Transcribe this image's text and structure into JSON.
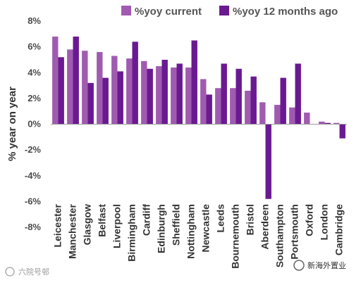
{
  "chart_data": {
    "type": "bar",
    "title": "",
    "xlabel": "",
    "ylabel": "% year on year",
    "ylim": [
      -8,
      8
    ],
    "yticks": [
      "8%",
      "6%",
      "4%",
      "2%",
      "0%",
      "-2%",
      "-4%",
      "-6%",
      "-8%"
    ],
    "grid": false,
    "legend_position": "top-right",
    "categories": [
      "Leicester",
      "Manchester",
      "Glasgow",
      "Belfast",
      "Liverpool",
      "Birmingham",
      "Cardiff",
      "Edinburgh",
      "Sheffield",
      "Nottingham",
      "Newcastle",
      "Leeds",
      "Bournemouth",
      "Bristol",
      "Aberdeen",
      "Southampton",
      "Portsmouth",
      "Oxford",
      "London",
      "Cambridge"
    ],
    "series": [
      {
        "name": "%yoy current",
        "color": "#a05bb0",
        "values": [
          6.8,
          5.8,
          5.7,
          5.6,
          5.3,
          5.1,
          4.9,
          4.5,
          4.4,
          4.4,
          3.5,
          2.8,
          2.8,
          2.6,
          1.7,
          1.5,
          1.3,
          0.9,
          0.2,
          0.1
        ]
      },
      {
        "name": "%yoy 12 months ago",
        "color": "#6a1a90",
        "values": [
          5.2,
          6.8,
          3.2,
          3.6,
          4.1,
          6.4,
          4.3,
          5.0,
          4.7,
          6.5,
          2.3,
          4.7,
          4.3,
          3.7,
          -5.8,
          3.6,
          4.7,
          null,
          0.1,
          -1.1
        ]
      }
    ]
  },
  "watermarks": {
    "left": "六院号邨",
    "right": "新海外置业"
  }
}
